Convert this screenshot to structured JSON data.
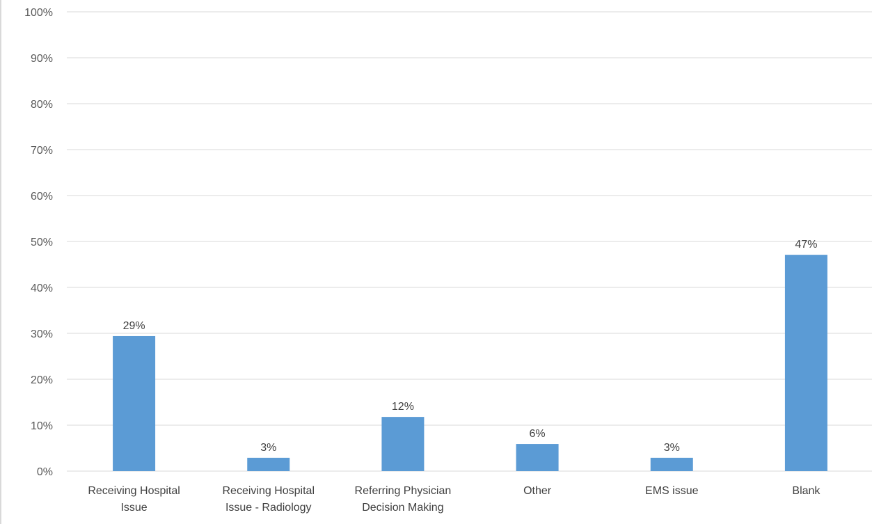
{
  "chart_data": {
    "type": "bar",
    "title": "",
    "xlabel": "",
    "ylabel": "",
    "ylim": [
      0,
      100
    ],
    "y_unit": "%",
    "y_ticks": [
      0,
      10,
      20,
      30,
      40,
      50,
      60,
      70,
      80,
      90,
      100
    ],
    "y_tick_labels": [
      "0%",
      "10%",
      "20%",
      "30%",
      "40%",
      "50%",
      "60%",
      "70%",
      "80%",
      "90%",
      "100%"
    ],
    "grid": true,
    "legend": "none",
    "categories": [
      [
        "Receiving Hospital",
        "Issue"
      ],
      [
        "Receiving Hospital",
        "Issue - Radiology"
      ],
      [
        "Referring Physician",
        "Decision Making"
      ],
      [
        "Other"
      ],
      [
        "EMS issue"
      ],
      [
        "Blank"
      ]
    ],
    "values": [
      29.4,
      2.9,
      11.8,
      5.9,
      2.9,
      47.1
    ],
    "data_labels": [
      "29%",
      "3%",
      "12%",
      "6%",
      "3%",
      "47%"
    ],
    "colors": {
      "bar": "#5b9bd5",
      "grid": "#d9d9d9",
      "axis": "#d9d9d9"
    }
  }
}
